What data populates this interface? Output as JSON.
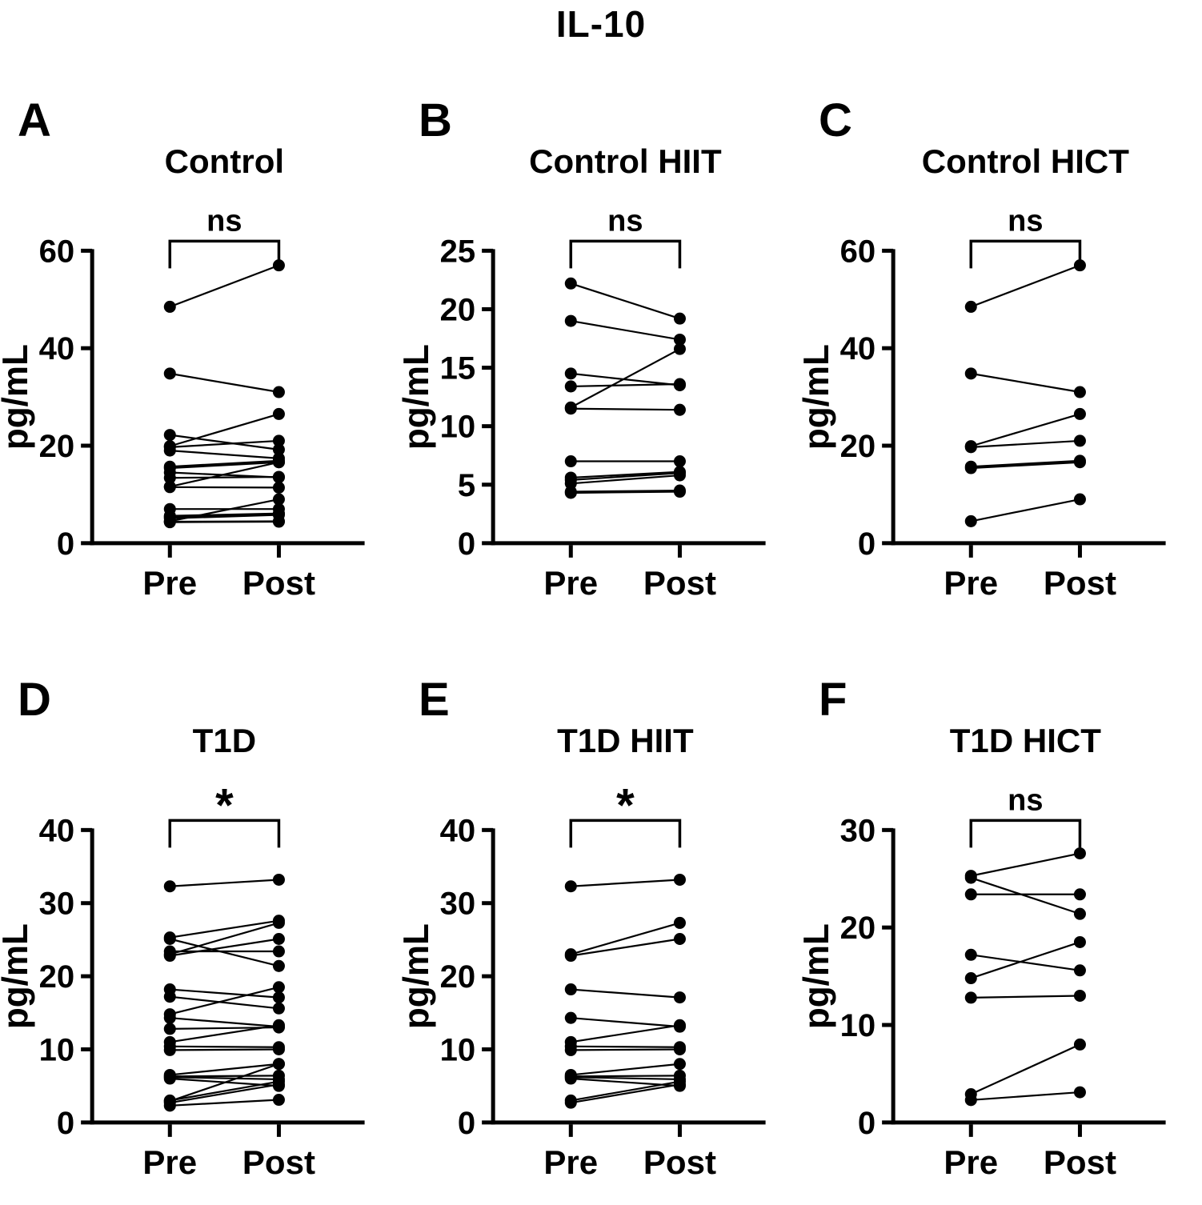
{
  "figure_title": "IL-10",
  "colors": {
    "ink": "#000000",
    "background": "#ffffff"
  },
  "chart_data": [
    {
      "type": "line",
      "subtype": "paired-scatter",
      "panel": "A",
      "title": "Control",
      "significance": "ns",
      "ylabel": "pg/mL",
      "xlabel": "",
      "categories": [
        "Pre",
        "Post"
      ],
      "ylim": [
        0,
        60
      ],
      "yticks": [
        0,
        20,
        40,
        60
      ],
      "grid": false,
      "pairs": [
        [
          48.5,
          57.0
        ],
        [
          34.8,
          31.0
        ],
        [
          22.2,
          19.2
        ],
        [
          19.9,
          26.5
        ],
        [
          19.7,
          21.0
        ],
        [
          19.0,
          17.4
        ],
        [
          15.7,
          16.9
        ],
        [
          15.4,
          16.6
        ],
        [
          14.5,
          13.5
        ],
        [
          13.4,
          13.6
        ],
        [
          11.6,
          16.6
        ],
        [
          11.5,
          11.4
        ],
        [
          7.0,
          7.0
        ],
        [
          5.6,
          6.1
        ],
        [
          5.4,
          6.0
        ],
        [
          5.1,
          5.8
        ],
        [
          4.5,
          9.0
        ],
        [
          4.4,
          4.5
        ],
        [
          4.3,
          4.4
        ]
      ]
    },
    {
      "type": "line",
      "subtype": "paired-scatter",
      "panel": "B",
      "title": "Control HIIT",
      "significance": "ns",
      "ylabel": "pg/mL",
      "xlabel": "",
      "categories": [
        "Pre",
        "Post"
      ],
      "ylim": [
        0,
        25
      ],
      "yticks": [
        0,
        5,
        10,
        15,
        20,
        25
      ],
      "grid": false,
      "pairs": [
        [
          22.2,
          19.2
        ],
        [
          19.0,
          17.4
        ],
        [
          14.5,
          13.5
        ],
        [
          13.4,
          13.6
        ],
        [
          11.6,
          16.6
        ],
        [
          11.5,
          11.4
        ],
        [
          7.0,
          7.0
        ],
        [
          5.6,
          6.1
        ],
        [
          5.4,
          6.0
        ],
        [
          5.1,
          5.8
        ],
        [
          4.4,
          4.5
        ],
        [
          4.3,
          4.4
        ]
      ]
    },
    {
      "type": "line",
      "subtype": "paired-scatter",
      "panel": "C",
      "title": "Control HICT",
      "significance": "ns",
      "ylabel": "pg/mL",
      "xlabel": "",
      "categories": [
        "Pre",
        "Post"
      ],
      "ylim": [
        0,
        60
      ],
      "yticks": [
        0,
        20,
        40,
        60
      ],
      "grid": false,
      "pairs": [
        [
          48.5,
          57.0
        ],
        [
          34.8,
          31.0
        ],
        [
          19.9,
          26.5
        ],
        [
          19.7,
          21.0
        ],
        [
          15.7,
          16.9
        ],
        [
          15.4,
          16.6
        ],
        [
          4.5,
          9.0
        ]
      ]
    },
    {
      "type": "line",
      "subtype": "paired-scatter",
      "panel": "D",
      "title": "T1D",
      "significance": "*",
      "ylabel": "pg/mL",
      "xlabel": "",
      "categories": [
        "Pre",
        "Post"
      ],
      "ylim": [
        0,
        40
      ],
      "yticks": [
        0,
        10,
        20,
        30,
        40
      ],
      "grid": false,
      "pairs": [
        [
          32.3,
          33.2
        ],
        [
          25.3,
          27.6
        ],
        [
          25.1,
          21.4
        ],
        [
          23.4,
          23.4
        ],
        [
          23.0,
          27.3
        ],
        [
          22.8,
          25.1
        ],
        [
          18.2,
          17.1
        ],
        [
          17.2,
          15.6
        ],
        [
          14.8,
          18.5
        ],
        [
          14.3,
          13.1
        ],
        [
          12.8,
          13.0
        ],
        [
          11.0,
          13.3
        ],
        [
          10.4,
          10.3
        ],
        [
          9.9,
          10.0
        ],
        [
          6.5,
          8.0
        ],
        [
          6.3,
          6.4
        ],
        [
          6.2,
          5.9
        ],
        [
          6.0,
          5.0
        ],
        [
          3.0,
          5.6
        ],
        [
          2.9,
          8.0
        ],
        [
          2.7,
          5.2
        ],
        [
          2.3,
          3.1
        ]
      ]
    },
    {
      "type": "line",
      "subtype": "paired-scatter",
      "panel": "E",
      "title": "T1D HIIT",
      "significance": "*",
      "ylabel": "pg/mL",
      "xlabel": "",
      "categories": [
        "Pre",
        "Post"
      ],
      "ylim": [
        0,
        40
      ],
      "yticks": [
        0,
        10,
        20,
        30,
        40
      ],
      "grid": false,
      "pairs": [
        [
          32.3,
          33.2
        ],
        [
          23.0,
          27.3
        ],
        [
          22.8,
          25.1
        ],
        [
          18.2,
          17.1
        ],
        [
          14.3,
          13.1
        ],
        [
          11.0,
          13.3
        ],
        [
          10.4,
          10.3
        ],
        [
          9.9,
          10.0
        ],
        [
          6.5,
          8.0
        ],
        [
          6.3,
          6.4
        ],
        [
          6.2,
          5.9
        ],
        [
          6.0,
          5.0
        ],
        [
          3.0,
          5.6
        ],
        [
          2.7,
          5.2
        ]
      ]
    },
    {
      "type": "line",
      "subtype": "paired-scatter",
      "panel": "F",
      "title": "T1D HICT",
      "significance": "ns",
      "ylabel": "pg/mL",
      "xlabel": "",
      "categories": [
        "Pre",
        "Post"
      ],
      "ylim": [
        0,
        30
      ],
      "yticks": [
        0,
        10,
        20,
        30
      ],
      "grid": false,
      "pairs": [
        [
          25.3,
          27.6
        ],
        [
          25.1,
          21.4
        ],
        [
          23.4,
          23.4
        ],
        [
          17.2,
          15.6
        ],
        [
          14.8,
          18.5
        ],
        [
          12.8,
          13.0
        ],
        [
          2.9,
          8.0
        ],
        [
          2.3,
          3.1
        ]
      ]
    }
  ]
}
